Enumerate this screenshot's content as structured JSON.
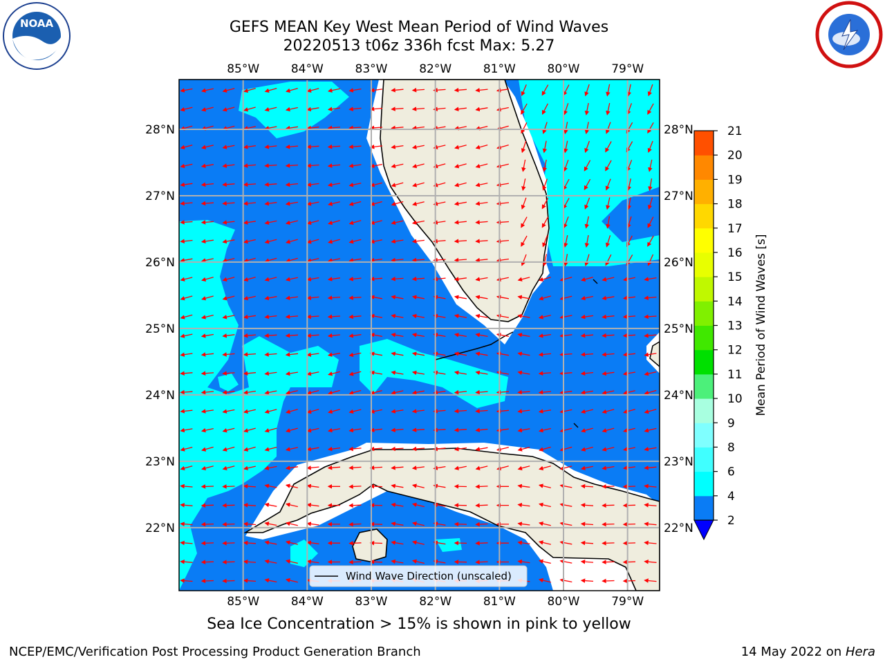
{
  "title_line1": "GEFS MEAN Key West Mean Period of Wind Waves",
  "title_line2": "20220513 t06z 336h fcst   Max: 5.27",
  "logos": {
    "left": "noaa-logo",
    "right": "nws-logo"
  },
  "map": {
    "lon_ticks": [
      "85°W",
      "84°W",
      "83°W",
      "82°W",
      "81°W",
      "80°W",
      "79°W"
    ],
    "lat_ticks": [
      "28°N",
      "27°N",
      "26°N",
      "25°N",
      "24°N",
      "23°N",
      "22°N"
    ],
    "lon_range": [
      -86,
      -78.5
    ],
    "lat_range": [
      21.05,
      28.75
    ],
    "legend_label": "Wind Wave Direction (unscaled)",
    "arrow_color": "#ff0000",
    "land_color": "#efedde",
    "ocean_color": "#0a7cf5",
    "light_color": "#00ffff"
  },
  "colorbar": {
    "label": "Mean Period of Wind Waves [s]",
    "ticks": [
      "2",
      "4",
      "6",
      "8",
      "9",
      "10",
      "11",
      "12",
      "13",
      "14",
      "15",
      "16",
      "17",
      "18",
      "19",
      "20",
      "21"
    ],
    "colors": [
      "#0a7cf5",
      "#00ffff",
      "#40ffff",
      "#7fffff",
      "#a8ffe0",
      "#4cf07a",
      "#00e000",
      "#40e800",
      "#80f000",
      "#c0f800",
      "#e8ff00",
      "#ffff00",
      "#ffd800",
      "#ffb000",
      "#ff8800",
      "#ff5000",
      "#ff2800",
      "#ff0000"
    ],
    "under_color": "#0000ff"
  },
  "caption": "Sea Ice Concentration > 15% is shown in pink to yellow",
  "footer_left": "NCEP/EMC/Verification Post Processing Product Generation Branch",
  "footer_date": "14 May 2022 on ",
  "footer_machine": "Hera"
}
